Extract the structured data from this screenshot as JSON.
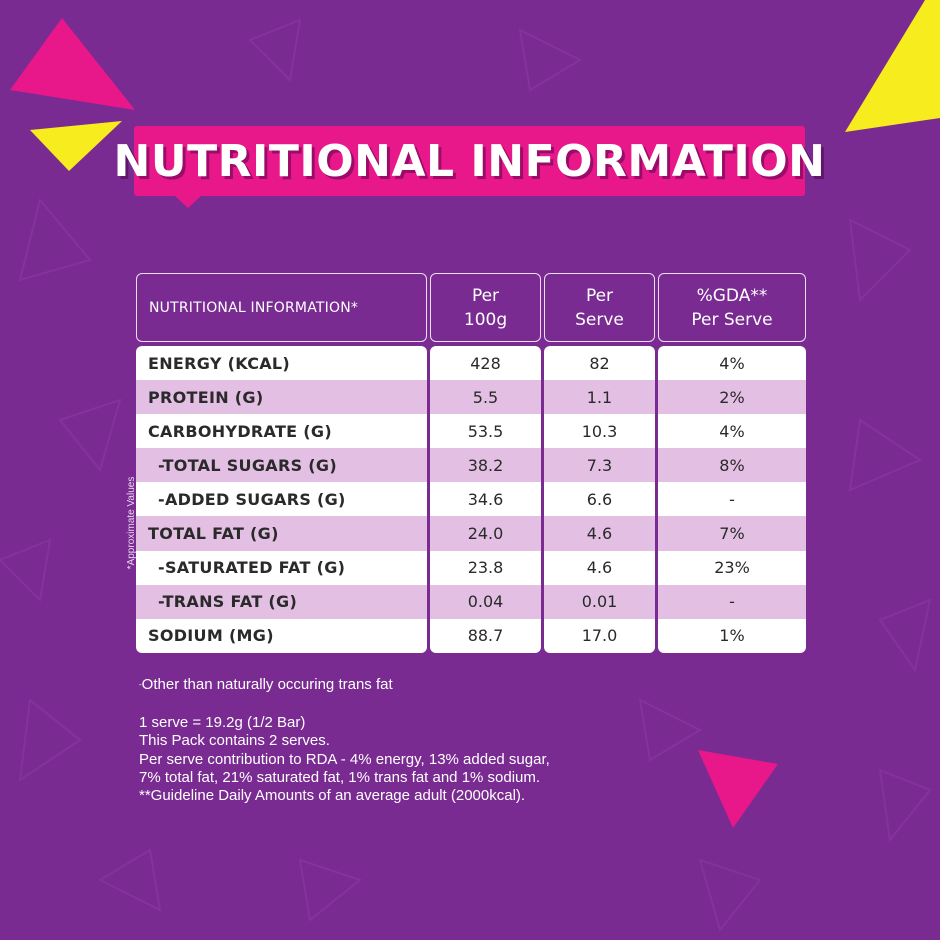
{
  "theme": {
    "background": "#7a2b92",
    "banner": "#e8178a",
    "accent_yellow": "#f6ec1e",
    "row_alt": "#e2bfe3"
  },
  "banner": {
    "title": "NUTRITIONAL INFORMATION"
  },
  "table": {
    "headers": [
      {
        "line1": "NUTRITIONAL INFORMATION*",
        "line2": ""
      },
      {
        "line1": "Per",
        "line2": "100g"
      },
      {
        "line1": "Per",
        "line2": "Serve"
      },
      {
        "line1": "%GDA**",
        "line2": "Per Serve"
      }
    ],
    "rows": [
      {
        "label": "ENERGY (KCAL)",
        "per100g": "428",
        "perServe": "82",
        "gda": "4%"
      },
      {
        "label": "PROTEIN (G)",
        "per100g": "5.5",
        "perServe": "1.1",
        "gda": "2%"
      },
      {
        "label": "CARBOHYDRATE (G)",
        "per100g": "53.5",
        "perServe": "10.3",
        "gda": "4%"
      },
      {
        "label": "-TOTAL SUGARS (G)",
        "per100g": "38.2",
        "perServe": "7.3",
        "gda": "8%"
      },
      {
        "label": "-ADDED SUGARS (G)",
        "per100g": "34.6",
        "perServe": "6.6",
        "gda": "-"
      },
      {
        "label": "TOTAL FAT (G)",
        "per100g": "24.0",
        "perServe": "4.6",
        "gda": "7%"
      },
      {
        "label": "-SATURATED FAT (G)",
        "per100g": "23.8",
        "perServe": "4.6",
        "gda": "23%"
      },
      {
        "label": "-TRANS FAT (G)",
        "per100g": "0.04",
        "perServe": "0.01",
        "gda": "-"
      },
      {
        "label": "SODIUM (MG)",
        "per100g": "88.7",
        "perServe": "17.0",
        "gda": "1%"
      }
    ]
  },
  "side_note": {
    "mark": "*",
    "text": "Approximate Values"
  },
  "footnote": {
    "mark": "-",
    "text": "Other than naturally occuring trans fat"
  },
  "notes": [
    "1 serve = 19.2g (1/2 Bar)",
    "This Pack contains 2 serves.",
    "Per serve contribution to RDA - 4% energy, 13% added sugar,",
    "7% total fat, 21% saturated fat, 1% trans fat and 1% sodium.",
    "**Guideline Daily Amounts of an average adult (2000kcal)."
  ]
}
